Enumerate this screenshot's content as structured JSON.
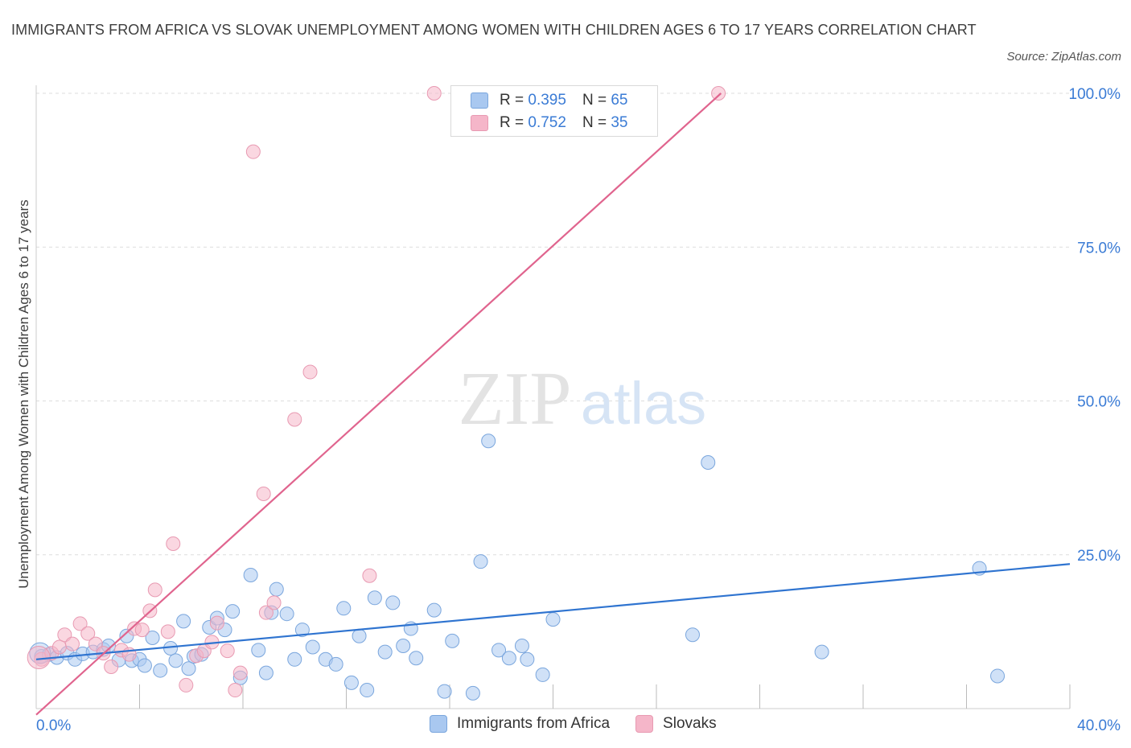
{
  "title": "IMMIGRANTS FROM AFRICA VS SLOVAK UNEMPLOYMENT AMONG WOMEN WITH CHILDREN AGES 6 TO 17 YEARS CORRELATION CHART",
  "source": "Source: ZipAtlas.com",
  "watermark": {
    "zip": "ZIP",
    "atlas": "atlas"
  },
  "legend_stats": {
    "r_label": "R =",
    "n_label": "N =",
    "rows": [
      {
        "series": "Immigrants from Africa",
        "r": "0.395",
        "n": "65",
        "color": "#a9c8f0"
      },
      {
        "series": "Slovaks",
        "r": "0.752",
        "n": "35",
        "color": "#f5b6c9"
      }
    ]
  },
  "colors": {
    "africa_fill": "#a9c8f0",
    "africa_stroke": "#7aa6dd",
    "africa_line": "#2f74d0",
    "slovak_fill": "#f5b6c9",
    "slovak_stroke": "#e89ab2",
    "slovak_line": "#e0648e",
    "tick_label": "#3a7bd5",
    "grid": "#dddddd"
  },
  "chart_data": {
    "type": "scatter",
    "title": "IMMIGRANTS FROM AFRICA VS SLOVAK UNEMPLOYMENT AMONG WOMEN WITH CHILDREN AGES 6 TO 17 YEARS CORRELATION CHART",
    "xlabel": "",
    "ylabel": "Unemployment Among Women with Children Ages 6 to 17 years",
    "xlim": [
      0,
      40
    ],
    "ylim": [
      0,
      100
    ],
    "x_tick_labels": [
      "0.0%",
      "40.0%"
    ],
    "y_tick_labels": [
      "25.0%",
      "50.0%",
      "75.0%",
      "100.0%"
    ],
    "y_ticks": [
      25,
      50,
      75,
      100
    ],
    "grid": true,
    "legend": "bottom-center",
    "series": [
      {
        "name": "Immigrants from Africa",
        "trend": {
          "x": [
            0,
            40
          ],
          "y": [
            8.0,
            23.5
          ]
        },
        "points": [
          [
            0.2,
            8.5
          ],
          [
            0.5,
            8.8
          ],
          [
            0.8,
            8.3
          ],
          [
            1.2,
            9.0
          ],
          [
            1.5,
            8.0
          ],
          [
            1.8,
            8.9
          ],
          [
            2.2,
            9.2
          ],
          [
            2.6,
            9.6
          ],
          [
            2.8,
            10.2
          ],
          [
            3.2,
            7.9
          ],
          [
            3.5,
            11.8
          ],
          [
            3.7,
            7.8
          ],
          [
            4.0,
            8.0
          ],
          [
            4.2,
            7.0
          ],
          [
            4.5,
            11.5
          ],
          [
            4.8,
            6.2
          ],
          [
            5.2,
            9.8
          ],
          [
            5.4,
            7.8
          ],
          [
            5.7,
            14.2
          ],
          [
            5.9,
            6.5
          ],
          [
            6.1,
            8.5
          ],
          [
            6.4,
            8.8
          ],
          [
            6.7,
            13.2
          ],
          [
            7.0,
            14.7
          ],
          [
            7.3,
            12.8
          ],
          [
            7.6,
            15.8
          ],
          [
            7.9,
            5.0
          ],
          [
            8.3,
            21.7
          ],
          [
            8.6,
            9.5
          ],
          [
            8.9,
            5.8
          ],
          [
            9.1,
            15.6
          ],
          [
            9.3,
            19.4
          ],
          [
            9.7,
            15.4
          ],
          [
            10.0,
            8.0
          ],
          [
            10.3,
            12.8
          ],
          [
            10.7,
            10.0
          ],
          [
            11.2,
            8.0
          ],
          [
            11.6,
            7.2
          ],
          [
            11.9,
            16.3
          ],
          [
            12.2,
            4.2
          ],
          [
            12.5,
            11.8
          ],
          [
            12.8,
            3.0
          ],
          [
            13.1,
            18.0
          ],
          [
            13.5,
            9.2
          ],
          [
            13.8,
            17.2
          ],
          [
            14.2,
            10.2
          ],
          [
            14.5,
            13.0
          ],
          [
            14.7,
            8.2
          ],
          [
            15.4,
            16.0
          ],
          [
            15.8,
            2.8
          ],
          [
            16.1,
            11.0
          ],
          [
            16.9,
            2.5
          ],
          [
            17.2,
            23.9
          ],
          [
            17.5,
            43.5
          ],
          [
            17.9,
            9.5
          ],
          [
            18.3,
            8.2
          ],
          [
            18.8,
            10.2
          ],
          [
            19.0,
            8.0
          ],
          [
            19.6,
            5.5
          ],
          [
            20.0,
            14.5
          ],
          [
            25.4,
            12.0
          ],
          [
            26.0,
            40.0
          ],
          [
            30.4,
            9.2
          ],
          [
            36.5,
            22.8
          ],
          [
            37.2,
            5.3
          ]
        ]
      },
      {
        "name": "Slovaks",
        "trend": {
          "x": [
            0,
            26.5
          ],
          "y": [
            -1.0,
            100.0
          ]
        },
        "points": [
          [
            0.2,
            8.0
          ],
          [
            0.6,
            9.0
          ],
          [
            0.9,
            10.0
          ],
          [
            1.1,
            12.0
          ],
          [
            1.4,
            10.5
          ],
          [
            1.7,
            13.8
          ],
          [
            2.0,
            12.2
          ],
          [
            2.3,
            10.5
          ],
          [
            2.6,
            9.0
          ],
          [
            2.9,
            6.8
          ],
          [
            3.3,
            9.5
          ],
          [
            3.6,
            8.8
          ],
          [
            3.8,
            13.0
          ],
          [
            4.1,
            12.8
          ],
          [
            4.4,
            15.9
          ],
          [
            4.6,
            19.3
          ],
          [
            5.1,
            12.5
          ],
          [
            5.3,
            26.8
          ],
          [
            5.8,
            3.8
          ],
          [
            6.2,
            8.6
          ],
          [
            6.5,
            9.4
          ],
          [
            6.8,
            10.8
          ],
          [
            7.0,
            13.9
          ],
          [
            7.4,
            9.4
          ],
          [
            7.7,
            3.0
          ],
          [
            7.9,
            5.8
          ],
          [
            8.4,
            90.5
          ],
          [
            8.9,
            15.6
          ],
          [
            8.8,
            34.9
          ],
          [
            9.2,
            17.2
          ],
          [
            10.0,
            47.0
          ],
          [
            10.6,
            54.7
          ],
          [
            12.9,
            21.6
          ],
          [
            15.4,
            100.0
          ],
          [
            26.4,
            100.0
          ]
        ]
      }
    ]
  }
}
